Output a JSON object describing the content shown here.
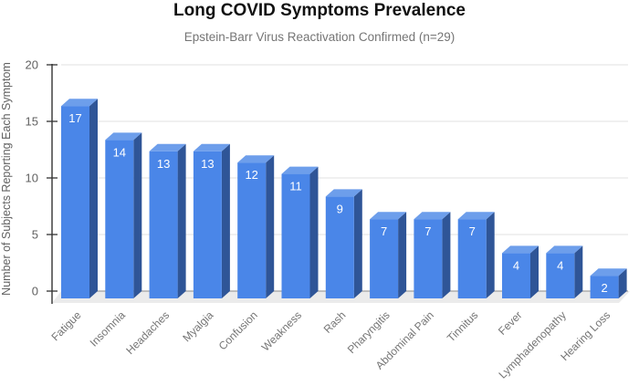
{
  "chart_data": {
    "type": "bar",
    "style": "3d-column",
    "title": "Long COVID Symptoms Prevalence",
    "subtitle": "Epstein-Barr Virus Reactivation Confirmed (n=29)",
    "xlabel": "",
    "ylabel": "Number of Subjects Reporting Each Symptom",
    "ylim": [
      0,
      20
    ],
    "yticks": [
      0,
      5,
      10,
      15,
      20
    ],
    "grid": true,
    "legend": "none",
    "categories": [
      "Fatigue",
      "Insomnia",
      "Headaches",
      "Myalgia",
      "Confusion",
      "Weakness",
      "Rash",
      "Pharyngitis",
      "Abdominal Pain",
      "Tinnitus",
      "Fever",
      "Lymphadenopathy",
      "Hearing Loss"
    ],
    "values": [
      17,
      14,
      13,
      13,
      12,
      11,
      9,
      7,
      7,
      7,
      4,
      4,
      2
    ],
    "colors": {
      "bar_front": "#4a86e8",
      "bar_top": "#6d9eeb",
      "bar_side": "#2f5597",
      "floor": "#ebebeb",
      "gridline": "#e0e0e0",
      "axis": "#333333"
    }
  }
}
